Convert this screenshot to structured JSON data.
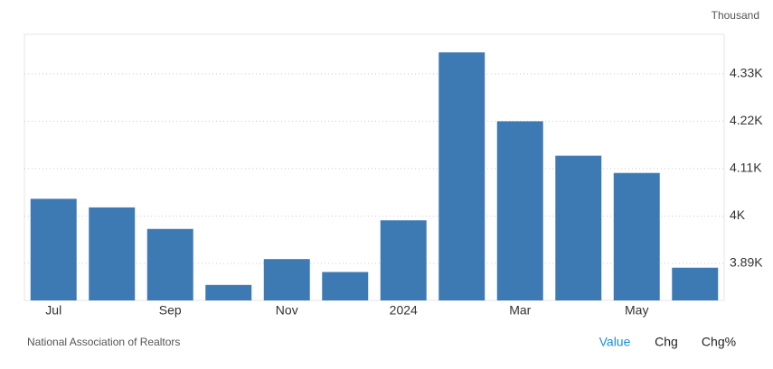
{
  "chart_data": {
    "type": "bar",
    "unit_label": "Thousand",
    "categories": [
      "Jul",
      null,
      "Sep",
      null,
      "Nov",
      null,
      "2024",
      null,
      "Mar",
      null,
      "May",
      null
    ],
    "values": [
      4.04,
      4.02,
      3.97,
      3.84,
      3.9,
      3.87,
      3.99,
      4.38,
      4.22,
      4.14,
      4.1,
      3.88
    ],
    "color": "#3d7ab3",
    "ylim": [
      3.804,
      4.422
    ],
    "yticks": [
      {
        "value": 3.89,
        "label": "3.89K"
      },
      {
        "value": 4,
        "label": "4K"
      },
      {
        "value": 4.11,
        "label": "4.11K"
      },
      {
        "value": 4.22,
        "label": "4.22K"
      },
      {
        "value": 4.33,
        "label": "4.33K"
      }
    ],
    "grid": true,
    "source": "National Association of Realtors",
    "buttons": [
      "Value",
      "Chg",
      "Chg%"
    ],
    "active_button_color": "#1a8fd6"
  }
}
